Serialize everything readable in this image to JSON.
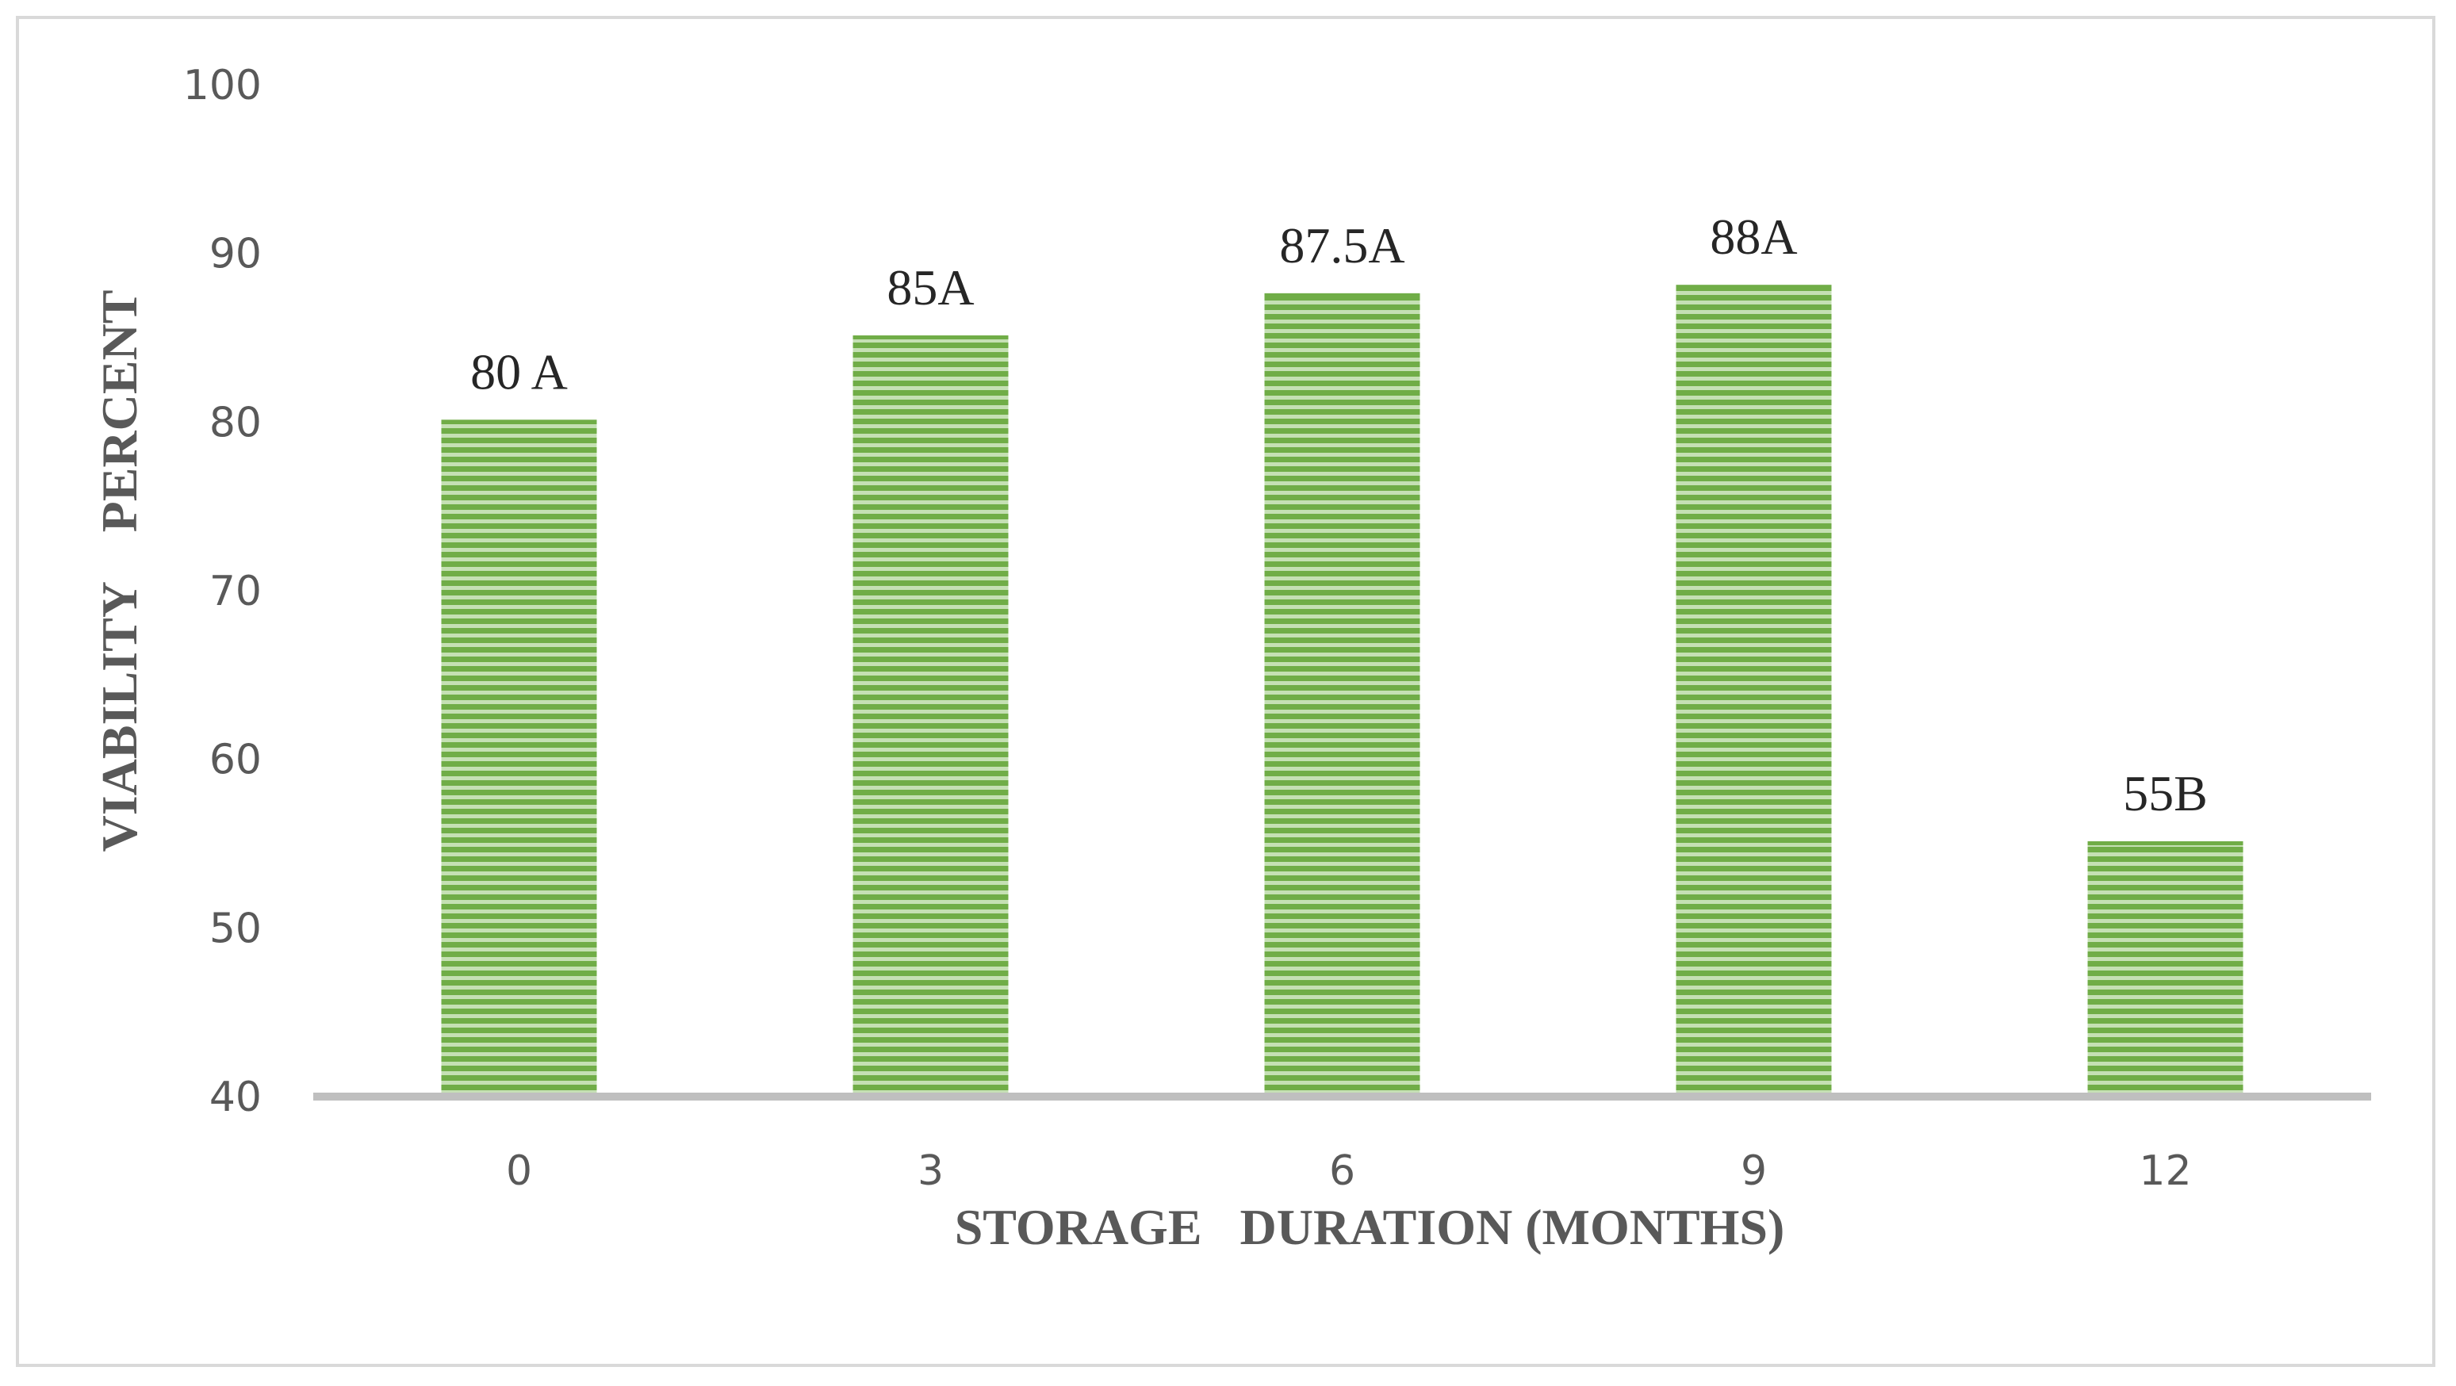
{
  "chart_data": {
    "type": "bar",
    "categories": [
      "0",
      "3",
      "6",
      "9",
      "12"
    ],
    "values": [
      80,
      85,
      87.5,
      88,
      55
    ],
    "data_labels": [
      "80 A",
      "85A",
      "87.5A",
      "88A",
      "55B"
    ],
    "title": "",
    "xlabel": "STORAGE   DURATION (MONTHS)",
    "ylabel": "VIABILITY    PERCENT",
    "ylim": [
      40,
      100
    ],
    "yticks": [
      "40",
      "50",
      "60",
      "70",
      "80",
      "90",
      "100"
    ],
    "ytick_values": [
      40,
      50,
      60,
      70,
      80,
      90,
      100
    ],
    "grid": false,
    "legend": "none",
    "colors": {
      "bar_fill": "#70ad47",
      "bar_stripe_light": "#c5e0b4",
      "axis_line": "#bfbfbf",
      "frame_border": "#d9d9d9"
    }
  }
}
